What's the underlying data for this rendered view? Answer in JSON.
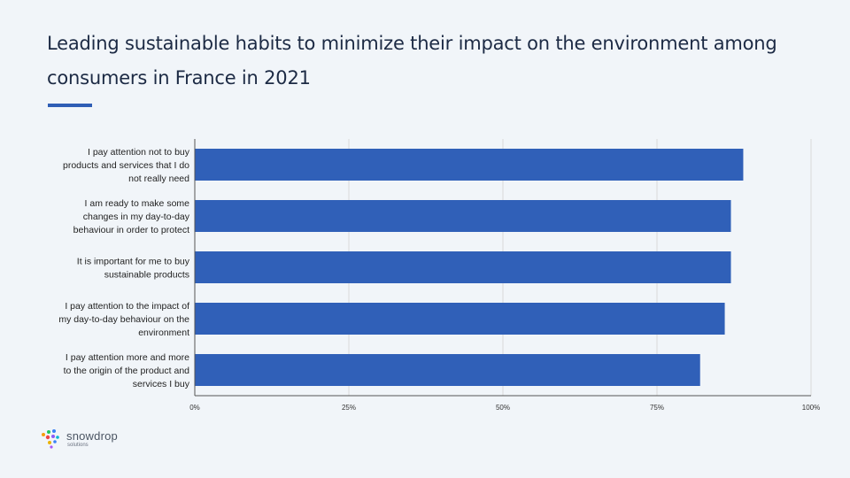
{
  "header": {
    "title": "Leading sustainable habits to minimize their impact on the environment among consumers in France in 2021"
  },
  "colors": {
    "bar": "#3060b8",
    "accent": "#2f5eb5",
    "grid": "#d9d9d9",
    "axis": "#555555"
  },
  "chart_data": {
    "type": "bar",
    "orientation": "horizontal",
    "categories": [
      [
        "I pay attention not to buy",
        "products and services that I do",
        "not really need"
      ],
      [
        "I am ready to make some",
        "changes in my day-to-day",
        "behaviour in order to protect"
      ],
      [
        "It is important for me to buy",
        "sustainable products"
      ],
      [
        "I pay attention to the impact of",
        "my day-to-day behaviour on the",
        "environment"
      ],
      [
        "I pay attention more and more",
        "to the origin of the product and",
        "services I buy"
      ]
    ],
    "values": [
      0.89,
      0.87,
      0.87,
      0.86,
      0.82
    ],
    "xlim": [
      0,
      1
    ],
    "xticks": [
      0,
      0.25,
      0.5,
      0.75,
      1
    ],
    "xtick_labels": [
      "0%",
      "25%",
      "50%",
      "75%",
      "100%"
    ],
    "grid": true,
    "title": "",
    "xlabel": "",
    "ylabel": ""
  },
  "logo": {
    "name": "snowdrop",
    "sub": "solutions"
  }
}
